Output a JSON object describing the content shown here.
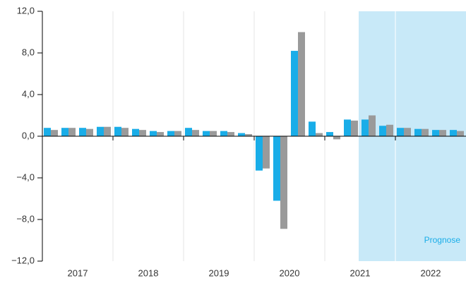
{
  "chart_data": {
    "type": "bar",
    "categories": [
      "2017",
      "2018",
      "2019",
      "2020",
      "2021",
      "2022"
    ],
    "series": [
      {
        "color": "#19ade8",
        "values": [
          [
            0.8,
            0.8,
            0.8,
            0.9
          ],
          [
            0.9,
            0.7,
            0.5,
            0.5
          ],
          [
            0.8,
            0.5,
            0.5,
            0.3
          ],
          [
            -3.3,
            -6.2,
            8.2,
            1.4
          ],
          [
            0.4,
            1.6,
            1.6,
            1.0
          ],
          [
            0.8,
            0.7,
            0.6,
            0.6
          ]
        ]
      },
      {
        "color": "#9a9a9a",
        "values": [
          [
            0.6,
            0.8,
            0.7,
            0.9
          ],
          [
            0.8,
            0.6,
            0.4,
            0.5
          ],
          [
            0.6,
            0.5,
            0.4,
            0.2
          ],
          [
            -3.1,
            -8.9,
            10.0,
            0.3
          ],
          [
            -0.3,
            1.5,
            2.0,
            1.1
          ],
          [
            0.8,
            0.7,
            0.6,
            0.5
          ]
        ]
      }
    ],
    "annotation": "Prognose",
    "ylim": [
      -12,
      12
    ],
    "yticks": [
      {
        "value": 12,
        "label": "12,0"
      },
      {
        "value": 8,
        "label": "8,0"
      },
      {
        "value": 4,
        "label": "4,0"
      },
      {
        "value": 0,
        "label": "0,0"
      },
      {
        "value": -4,
        "label": "−4,0"
      },
      {
        "value": -8,
        "label": "−8,0"
      },
      {
        "value": -12,
        "label": "−12,0"
      }
    ]
  }
}
